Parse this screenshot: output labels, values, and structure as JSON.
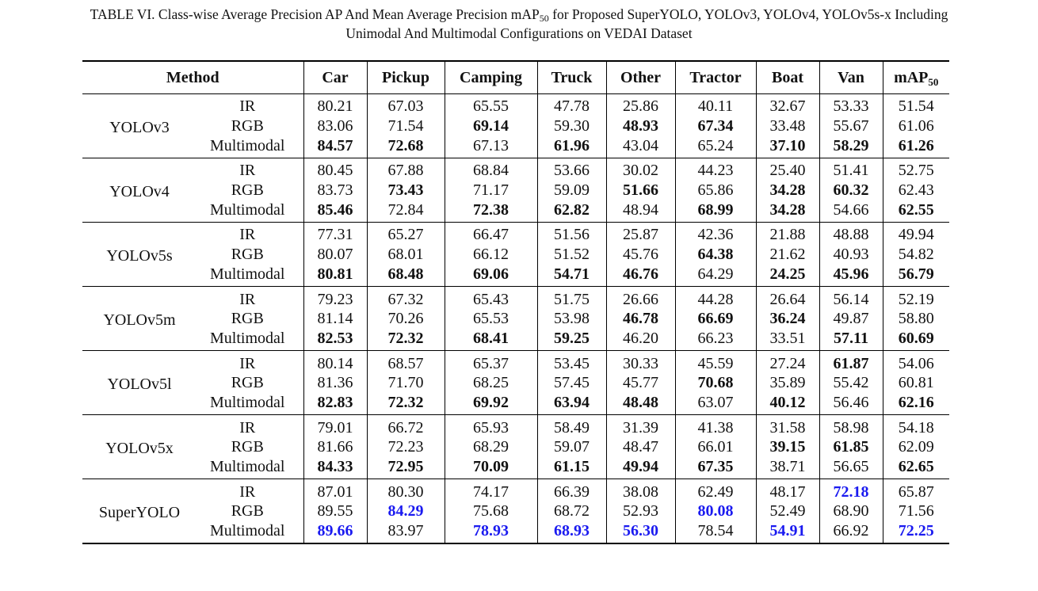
{
  "caption": {
    "line1_pre": "TABLE VI. Class-wise Average Precision AP And Mean Average Precision mAP",
    "line1_sub": "50",
    "line1_post": " for Proposed SuperYOLO, YOLOv3, YOLOv4, YOLOv5s-x Including",
    "line2": "Unimodal And Multimodal Configurations on VEDAI Dataset"
  },
  "header": {
    "method": "Method",
    "classes": [
      "Car",
      "Pickup",
      "Camping",
      "Truck",
      "Other",
      "Tractor",
      "Boat",
      "Van"
    ],
    "map": "mAP",
    "map_sub": "50"
  },
  "groups": [
    {
      "method": "YOLOv3",
      "rows": [
        {
          "modality": "IR",
          "values": [
            "80.21",
            "67.03",
            "65.55",
            "47.78",
            "25.86",
            "40.11",
            "32.67",
            "53.33",
            "51.54"
          ],
          "style": [
            "",
            "",
            "",
            "",
            "",
            "",
            "",
            "",
            ""
          ]
        },
        {
          "modality": "RGB",
          "values": [
            "83.06",
            "71.54",
            "69.14",
            "59.30",
            "48.93",
            "67.34",
            "33.48",
            "55.67",
            "61.06"
          ],
          "style": [
            "",
            "",
            "b",
            "",
            "b",
            "b",
            "",
            "",
            ""
          ]
        },
        {
          "modality": "Multimodal",
          "values": [
            "84.57",
            "72.68",
            "67.13",
            "61.96",
            "43.04",
            "65.24",
            "37.10",
            "58.29",
            "61.26"
          ],
          "style": [
            "b",
            "b",
            "",
            "b",
            "",
            "",
            "b",
            "b",
            "b"
          ]
        }
      ]
    },
    {
      "method": "YOLOv4",
      "rows": [
        {
          "modality": "IR",
          "values": [
            "80.45",
            "67.88",
            "68.84",
            "53.66",
            "30.02",
            "44.23",
            "25.40",
            "51.41",
            "52.75"
          ],
          "style": [
            "",
            "",
            "",
            "",
            "",
            "",
            "",
            "",
            ""
          ]
        },
        {
          "modality": "RGB",
          "values": [
            "83.73",
            "73.43",
            "71.17",
            "59.09",
            "51.66",
            "65.86",
            "34.28",
            "60.32",
            "62.43"
          ],
          "style": [
            "",
            "b",
            "",
            "",
            "b",
            "",
            "b",
            "b",
            ""
          ]
        },
        {
          "modality": "Multimodal",
          "values": [
            "85.46",
            "72.84",
            "72.38",
            "62.82",
            "48.94",
            "68.99",
            "34.28",
            "54.66",
            "62.55"
          ],
          "style": [
            "b",
            "",
            "b",
            "b",
            "",
            "b",
            "b",
            "",
            "b"
          ]
        }
      ]
    },
    {
      "method": "YOLOv5s",
      "rows": [
        {
          "modality": "IR",
          "values": [
            "77.31",
            "65.27",
            "66.47",
            "51.56",
            "25.87",
            "42.36",
            "21.88",
            "48.88",
            "49.94"
          ],
          "style": [
            "",
            "",
            "",
            "",
            "",
            "",
            "",
            "",
            ""
          ]
        },
        {
          "modality": "RGB",
          "values": [
            "80.07",
            "68.01",
            "66.12",
            "51.52",
            "45.76",
            "64.38",
            "21.62",
            "40.93",
            "54.82"
          ],
          "style": [
            "",
            "",
            "",
            "",
            "",
            "b",
            "",
            "",
            ""
          ]
        },
        {
          "modality": "Multimodal",
          "values": [
            "80.81",
            "68.48",
            "69.06",
            "54.71",
            "46.76",
            "64.29",
            "24.25",
            "45.96",
            "56.79"
          ],
          "style": [
            "b",
            "b",
            "b",
            "b",
            "b",
            "",
            "b",
            "b",
            "b"
          ]
        }
      ]
    },
    {
      "method": "YOLOv5m",
      "rows": [
        {
          "modality": "IR",
          "values": [
            "79.23",
            "67.32",
            "65.43",
            "51.75",
            "26.66",
            "44.28",
            "26.64",
            "56.14",
            "52.19"
          ],
          "style": [
            "",
            "",
            "",
            "",
            "",
            "",
            "",
            "",
            ""
          ]
        },
        {
          "modality": "RGB",
          "values": [
            "81.14",
            "70.26",
            "65.53",
            "53.98",
            "46.78",
            "66.69",
            "36.24",
            "49.87",
            "58.80"
          ],
          "style": [
            "",
            "",
            "",
            "",
            "b",
            "b",
            "b",
            "",
            ""
          ]
        },
        {
          "modality": "Multimodal",
          "values": [
            "82.53",
            "72.32",
            "68.41",
            "59.25",
            "46.20",
            "66.23",
            "33.51",
            "57.11",
            "60.69"
          ],
          "style": [
            "b",
            "b",
            "b",
            "b",
            "",
            "",
            "",
            "b",
            "b"
          ]
        }
      ]
    },
    {
      "method": "YOLOv5l",
      "rows": [
        {
          "modality": "IR",
          "values": [
            "80.14",
            "68.57",
            "65.37",
            "53.45",
            "30.33",
            "45.59",
            "27.24",
            "61.87",
            "54.06"
          ],
          "style": [
            "",
            "",
            "",
            "",
            "",
            "",
            "",
            "b",
            ""
          ]
        },
        {
          "modality": "RGB",
          "values": [
            "81.36",
            "71.70",
            "68.25",
            "57.45",
            "45.77",
            "70.68",
            "35.89",
            "55.42",
            "60.81"
          ],
          "style": [
            "",
            "",
            "",
            "",
            "",
            "b",
            "",
            "",
            ""
          ]
        },
        {
          "modality": "Multimodal",
          "values": [
            "82.83",
            "72.32",
            "69.92",
            "63.94",
            "48.48",
            "63.07",
            "40.12",
            "56.46",
            "62.16"
          ],
          "style": [
            "b",
            "b",
            "b",
            "b",
            "b",
            "",
            "b",
            "",
            "b"
          ]
        }
      ]
    },
    {
      "method": "YOLOv5x",
      "rows": [
        {
          "modality": "IR",
          "values": [
            "79.01",
            "66.72",
            "65.93",
            "58.49",
            "31.39",
            "41.38",
            "31.58",
            "58.98",
            "54.18"
          ],
          "style": [
            "",
            "",
            "",
            "",
            "",
            "",
            "",
            "",
            ""
          ]
        },
        {
          "modality": "RGB",
          "values": [
            "81.66",
            "72.23",
            "68.29",
            "59.07",
            "48.47",
            "66.01",
            "39.15",
            "61.85",
            "62.09"
          ],
          "style": [
            "",
            "",
            "",
            "",
            "",
            "",
            "b",
            "b",
            ""
          ]
        },
        {
          "modality": "Multimodal",
          "values": [
            "84.33",
            "72.95",
            "70.09",
            "61.15",
            "49.94",
            "67.35",
            "38.71",
            "56.65",
            "62.65"
          ],
          "style": [
            "b",
            "b",
            "b",
            "b",
            "b",
            "b",
            "",
            "",
            "b"
          ]
        }
      ]
    },
    {
      "method": "SuperYOLO",
      "rows": [
        {
          "modality": "IR",
          "values": [
            "87.01",
            "80.30",
            "74.17",
            "66.39",
            "38.08",
            "62.49",
            "48.17",
            "72.18",
            "65.87"
          ],
          "style": [
            "",
            "",
            "",
            "",
            "",
            "",
            "",
            "blue",
            ""
          ]
        },
        {
          "modality": "RGB",
          "values": [
            "89.55",
            "84.29",
            "75.68",
            "68.72",
            "52.93",
            "80.08",
            "52.49",
            "68.90",
            "71.56"
          ],
          "style": [
            "",
            "blue",
            "",
            "",
            "",
            "blue",
            "",
            "",
            ""
          ]
        },
        {
          "modality": "Multimodal",
          "values": [
            "89.66",
            "83.97",
            "78.93",
            "68.93",
            "56.30",
            "78.54",
            "54.91",
            "66.92",
            "72.25"
          ],
          "style": [
            "blue",
            "",
            "blue",
            "blue",
            "blue",
            "",
            "blue",
            "",
            "blue"
          ]
        }
      ]
    }
  ]
}
